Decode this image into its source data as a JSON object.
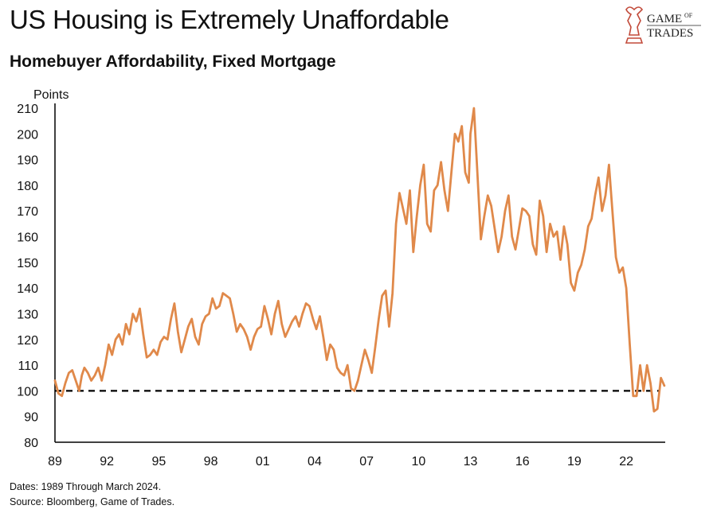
{
  "header": {
    "title": "US Housing is Extremely Unaffordable",
    "subtitle": "Homebuyer Affordability, Fixed Mortgage"
  },
  "logo": {
    "text_line1": "GAME",
    "text_of": "OF",
    "text_line2": "TRADES",
    "color": "#c24a3a"
  },
  "footer": {
    "dates": "Dates: 1989 Through March 2024.",
    "source": "Source: Bloomberg, Game of Trades."
  },
  "chart_data": {
    "type": "line",
    "title": "Homebuyer Affordability, Fixed Mortgage",
    "ylabel": "Points",
    "xlabel": "",
    "ylim": [
      80,
      210
    ],
    "xlim": [
      1989,
      2024.25
    ],
    "yticks": [
      "80",
      "90",
      "100",
      "110",
      "120",
      "130",
      "140",
      "150",
      "160",
      "170",
      "180",
      "190",
      "200",
      "210"
    ],
    "xtick_labels": [
      "89",
      "92",
      "95",
      "98",
      "01",
      "04",
      "07",
      "10",
      "13",
      "16",
      "19",
      "22"
    ],
    "xtick_years": [
      1989,
      1992,
      1995,
      1998,
      2001,
      2004,
      2007,
      2010,
      2013,
      2016,
      2019,
      2022
    ],
    "grid": false,
    "reference_line": {
      "y": 100,
      "style": "dashed",
      "color": "#000000"
    },
    "line_color": "#e0894a",
    "series": [
      {
        "x": [
          1989.0,
          1989.2,
          1989.4,
          1989.6,
          1989.8,
          1990.0,
          1990.2,
          1990.4,
          1990.55,
          1990.7,
          1990.9,
          1991.1,
          1991.3,
          1991.5,
          1991.7,
          1991.9,
          1992.1,
          1992.3,
          1992.5,
          1992.7,
          1992.9,
          1993.1,
          1993.3,
          1993.5,
          1993.7,
          1993.9,
          1994.1,
          1994.3,
          1994.5,
          1994.7,
          1994.9,
          1995.1,
          1995.3,
          1995.5,
          1995.7,
          1995.9,
          1996.1,
          1996.3,
          1996.5,
          1996.7,
          1996.9,
          1997.1,
          1997.3,
          1997.5,
          1997.7,
          1997.9,
          1998.1,
          1998.3,
          1998.5,
          1998.7,
          1998.9,
          1999.1,
          1999.3,
          1999.5,
          1999.7,
          1999.9,
          2000.1,
          2000.3,
          2000.5,
          2000.7,
          2000.9,
          2001.1,
          2001.3,
          2001.5,
          2001.7,
          2001.9,
          2002.1,
          2002.3,
          2002.5,
          2002.7,
          2002.9,
          2003.1,
          2003.3,
          2003.5,
          2003.7,
          2003.9,
          2004.1,
          2004.3,
          2004.5,
          2004.7,
          2004.9,
          2005.1,
          2005.3,
          2005.5,
          2005.7,
          2005.9,
          2006.1,
          2006.3,
          2006.5,
          2006.7,
          2006.9,
          2007.1,
          2007.3,
          2007.5,
          2007.7,
          2007.9,
          2008.1,
          2008.3,
          2008.5,
          2008.7,
          2008.9,
          2009.1,
          2009.3,
          2009.5,
          2009.7,
          2009.9,
          2010.1,
          2010.3,
          2010.5,
          2010.7,
          2010.9,
          2011.1,
          2011.3,
          2011.5,
          2011.7,
          2011.9,
          2012.1,
          2012.3,
          2012.5,
          2012.7,
          2012.9,
          2013.0,
          2013.2,
          2013.4,
          2013.6,
          2013.8,
          2014.0,
          2014.2,
          2014.4,
          2014.6,
          2014.8,
          2015.0,
          2015.2,
          2015.4,
          2015.6,
          2015.8,
          2016.0,
          2016.2,
          2016.4,
          2016.6,
          2016.8,
          2017.0,
          2017.2,
          2017.4,
          2017.6,
          2017.8,
          2018.0,
          2018.2,
          2018.4,
          2018.6,
          2018.8,
          2019.0,
          2019.2,
          2019.4,
          2019.6,
          2019.8,
          2020.0,
          2020.2,
          2020.4,
          2020.6,
          2020.8,
          2021.0,
          2021.2,
          2021.4,
          2021.6,
          2021.8,
          2022.0,
          2022.2,
          2022.4,
          2022.6,
          2022.8,
          2023.0,
          2023.2,
          2023.4,
          2023.6,
          2023.8,
          2024.0,
          2024.2
        ],
        "values": [
          104,
          99,
          98,
          103,
          107,
          108,
          104,
          100,
          106,
          109,
          107,
          104,
          106,
          109,
          104,
          110,
          118,
          114,
          120,
          122,
          118,
          126,
          122,
          130,
          127,
          132,
          122,
          113,
          114,
          116,
          114,
          119,
          121,
          120,
          128,
          134,
          123,
          115,
          120,
          125,
          128,
          121,
          118,
          126,
          129,
          130,
          136,
          132,
          133,
          138,
          137,
          136,
          130,
          123,
          126,
          124,
          121,
          116,
          121,
          124,
          125,
          133,
          128,
          122,
          130,
          135,
          126,
          121,
          124,
          127,
          129,
          125,
          130,
          134,
          133,
          128,
          124,
          129,
          121,
          112,
          118,
          116,
          109,
          107,
          106,
          110,
          101,
          100,
          104,
          110,
          116,
          112,
          107,
          117,
          128,
          137,
          139,
          125,
          138,
          165,
          177,
          171,
          165,
          178,
          154,
          168,
          180,
          188,
          165,
          162,
          178,
          180,
          189,
          178,
          170,
          185,
          200,
          197,
          203,
          185,
          181,
          200,
          210,
          185,
          159,
          168,
          176,
          172,
          163,
          154,
          160,
          170,
          176,
          160,
          155,
          163,
          171,
          170,
          168,
          157,
          153,
          174,
          168,
          154,
          165,
          160,
          162,
          151,
          164,
          157,
          142,
          139,
          146,
          149,
          155,
          164,
          167,
          176,
          183,
          170,
          176,
          188,
          170,
          152,
          146,
          148,
          140,
          118,
          98,
          98,
          110,
          100,
          110,
          103,
          92,
          93,
          105,
          102
        ]
      }
    ]
  }
}
